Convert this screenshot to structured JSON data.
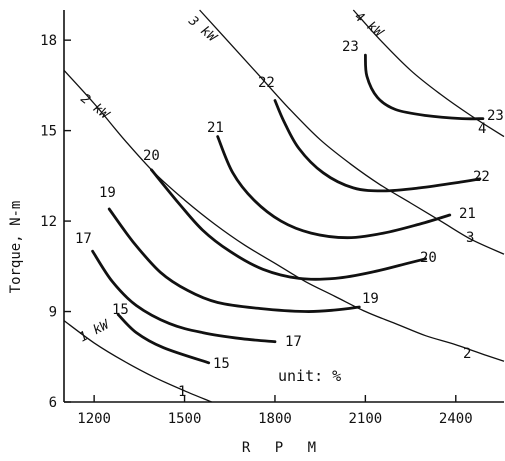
{
  "chart_data": {
    "type": "line",
    "xlabel": "R P M",
    "ylabel": "Torque, N-m",
    "xlim": [
      1100,
      2560
    ],
    "ylim": [
      6,
      19
    ],
    "xticks": [
      1200,
      1500,
      1800,
      2100,
      2400
    ],
    "yticks": [
      6,
      9,
      12,
      15,
      18
    ],
    "annotation": "unit: %",
    "efficiency_contours": [
      {
        "label": "15",
        "points": [
          [
            1280,
            8.9
          ],
          [
            1340,
            8.3
          ],
          [
            1430,
            7.8
          ],
          [
            1580,
            7.3
          ]
        ]
      },
      {
        "label": "17",
        "points": [
          [
            1195,
            11.0
          ],
          [
            1260,
            10.0
          ],
          [
            1340,
            9.2
          ],
          [
            1450,
            8.6
          ],
          [
            1560,
            8.3
          ],
          [
            1690,
            8.1
          ],
          [
            1800,
            8.0
          ]
        ]
      },
      {
        "label": "19",
        "points": [
          [
            1250,
            12.4
          ],
          [
            1330,
            11.3
          ],
          [
            1420,
            10.3
          ],
          [
            1510,
            9.7
          ],
          [
            1610,
            9.3
          ],
          [
            1750,
            9.1
          ],
          [
            1900,
            9.0
          ],
          [
            2000,
            9.05
          ],
          [
            2080,
            9.15
          ]
        ]
      },
      {
        "label": "20",
        "points": [
          [
            1390,
            13.7
          ],
          [
            1480,
            12.6
          ],
          [
            1560,
            11.7
          ],
          [
            1650,
            11.0
          ],
          [
            1760,
            10.4
          ],
          [
            1880,
            10.1
          ],
          [
            2000,
            10.1
          ],
          [
            2120,
            10.3
          ],
          [
            2240,
            10.6
          ],
          [
            2300,
            10.75
          ]
        ]
      },
      {
        "label": "21",
        "points": [
          [
            1610,
            14.8
          ],
          [
            1660,
            13.6
          ],
          [
            1730,
            12.7
          ],
          [
            1820,
            12.0
          ],
          [
            1920,
            11.6
          ],
          [
            2040,
            11.45
          ],
          [
            2160,
            11.6
          ],
          [
            2280,
            11.9
          ],
          [
            2380,
            12.2
          ]
        ]
      },
      {
        "label": "22",
        "points": [
          [
            1800,
            16.0
          ],
          [
            1830,
            15.3
          ],
          [
            1880,
            14.4
          ],
          [
            1960,
            13.6
          ],
          [
            2060,
            13.1
          ],
          [
            2160,
            13.0
          ],
          [
            2280,
            13.1
          ],
          [
            2420,
            13.3
          ],
          [
            2480,
            13.4
          ]
        ]
      },
      {
        "label": "23",
        "points": [
          [
            2100,
            17.5
          ],
          [
            2105,
            16.8
          ],
          [
            2140,
            16.1
          ],
          [
            2200,
            15.7
          ],
          [
            2300,
            15.5
          ],
          [
            2420,
            15.4
          ],
          [
            2490,
            15.4
          ]
        ]
      }
    ],
    "power_curves": [
      {
        "label": "1 kW",
        "points": [
          [
            1100,
            8.7
          ],
          [
            1200,
            7.96
          ],
          [
            1300,
            7.35
          ],
          [
            1400,
            6.82
          ],
          [
            1500,
            6.37
          ],
          [
            1590,
            6.0
          ]
        ]
      },
      {
        "label": "2 kW",
        "points": [
          [
            1100,
            17.0
          ],
          [
            1200,
            15.9
          ],
          [
            1300,
            14.7
          ],
          [
            1400,
            13.6
          ],
          [
            1500,
            12.7
          ],
          [
            1600,
            11.9
          ],
          [
            1700,
            11.2
          ],
          [
            1800,
            10.6
          ],
          [
            1900,
            10.0
          ],
          [
            2000,
            9.5
          ],
          [
            2100,
            9.0
          ],
          [
            2200,
            8.6
          ],
          [
            2300,
            8.2
          ],
          [
            2400,
            7.9
          ],
          [
            2500,
            7.55
          ],
          [
            2560,
            7.35
          ]
        ]
      },
      {
        "label": "3 kW",
        "points": [
          [
            1550,
            19.0
          ],
          [
            1650,
            17.9
          ],
          [
            1750,
            16.8
          ],
          [
            1850,
            15.7
          ],
          [
            1950,
            14.7
          ],
          [
            2050,
            13.9
          ],
          [
            2150,
            13.2
          ],
          [
            2250,
            12.6
          ],
          [
            2350,
            12.0
          ],
          [
            2450,
            11.4
          ],
          [
            2560,
            10.9
          ]
        ]
      },
      {
        "label": "4 kW",
        "points": [
          [
            2060,
            19.0
          ],
          [
            2150,
            18.0
          ],
          [
            2250,
            17.0
          ],
          [
            2350,
            16.2
          ],
          [
            2450,
            15.5
          ],
          [
            2560,
            14.8
          ]
        ]
      }
    ],
    "curve_labels": {
      "c15": "15",
      "c17_start": "17",
      "c17_end": "17",
      "c19_start": "19",
      "c19_end": "19",
      "c20_start": "20",
      "c20_end": "20",
      "c21_start": "21",
      "c21_end": "21",
      "c22_start": "22",
      "c22_end": "22",
      "c23_start": "23",
      "c23_end": "23",
      "p1": "1",
      "p1kw": "1 kW",
      "p2": "2",
      "p2kw": "2 kW",
      "p3": "3",
      "p3kw": "3 kW",
      "p4": "4",
      "p4kw": "4 kW",
      "c15_end": "15"
    }
  }
}
